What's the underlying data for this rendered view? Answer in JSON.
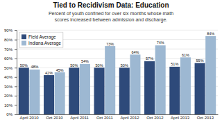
{
  "chart_data": {
    "type": "bar",
    "title": "Tied to Recidivism Data: Education",
    "subtitle": "Percent of youth confined for over six months whose math\nscores increased between admission and discharge.",
    "categories": [
      "April 2010",
      "Oct 2010",
      "April 2011",
      "Oct 2011",
      "April 2012",
      "Oct 2012",
      "April 2013",
      "Oct 2013"
    ],
    "series": [
      {
        "name": "Field Average",
        "color": "#2E4A7A",
        "values": [
          50,
          42,
          50,
          50,
          50,
          57,
          51,
          55
        ],
        "value_labels": [
          "50%",
          "42%",
          "50%",
          "50%",
          "50%",
          "57%",
          "51%",
          "55%"
        ]
      },
      {
        "name": "Indiana Average",
        "color": "#9DB8D2",
        "values": [
          48,
          45,
          54,
          73,
          64,
          74,
          61,
          84
        ],
        "value_labels": [
          "48%",
          "45%",
          "54%",
          "73%",
          "64%",
          "74%",
          "61%",
          "84%"
        ]
      }
    ],
    "ylim": [
      0,
      90
    ],
    "yticks": [
      {
        "value": 0,
        "label": "0%"
      },
      {
        "value": 10,
        "label": "10%"
      },
      {
        "value": 20,
        "label": "20%"
      },
      {
        "value": 30,
        "label": "30%"
      },
      {
        "value": 40,
        "label": "40%"
      },
      {
        "value": 50,
        "label": "50%"
      },
      {
        "value": 60,
        "label": "60%"
      },
      {
        "value": 70,
        "label": "70%"
      },
      {
        "value": 80,
        "label": "80%"
      },
      {
        "value": 90,
        "label": "90%"
      }
    ],
    "grid": true,
    "legend": "top-left",
    "data_labels": true
  }
}
